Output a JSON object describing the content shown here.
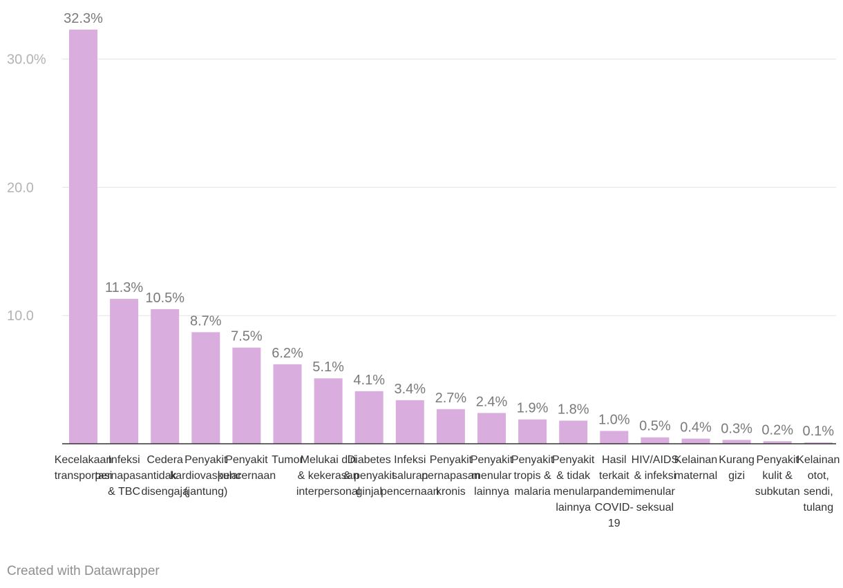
{
  "chart_data": {
    "type": "bar",
    "title": "",
    "xlabel": "",
    "ylabel": "",
    "ylim": [
      0,
      34.5
    ],
    "y_ticks": [
      10,
      20,
      30
    ],
    "y_tick_labels": [
      "10.0",
      "20.0",
      "30.0%"
    ],
    "grid": true,
    "bar_color": "#d9aedf",
    "categories": [
      [
        "Kecelakaan",
        "transportasi"
      ],
      [
        "Infeksi",
        "pernapasan",
        "& TBC"
      ],
      [
        "Cedera",
        "tidak",
        "disengaja"
      ],
      [
        "Penyakit",
        "kardiovaskular",
        "(jantung)"
      ],
      [
        "Penyakit",
        "pencernaan"
      ],
      [
        "Tumor"
      ],
      [
        "Melukai diri",
        "& kekerasan",
        "interpersonal"
      ],
      [
        "Diabetes",
        "& penyakit",
        "ginjal"
      ],
      [
        "Infeksi",
        "saluran",
        "pencernaan"
      ],
      [
        "Penyakit",
        "pernapasan",
        "kronis"
      ],
      [
        "Penyakit",
        "menular",
        "lainnya"
      ],
      [
        "Penyakit",
        "tropis &",
        "malaria"
      ],
      [
        "Penyakit",
        "& tidak",
        "menular",
        "lainnya"
      ],
      [
        "Hasil",
        "terkait",
        "pandemi",
        "COVID-",
        "19"
      ],
      [
        "HIV/AIDS",
        "& infeksi",
        "menular",
        "seksual"
      ],
      [
        "Kelainan",
        "maternal"
      ],
      [
        "Kurang",
        "gizi"
      ],
      [
        "Penyakit",
        "kulit &",
        "subkutan"
      ],
      [
        "Kelainan",
        "otot,",
        "sendi,",
        "tulang"
      ]
    ],
    "values": [
      32.3,
      11.3,
      10.5,
      8.7,
      7.5,
      6.2,
      5.1,
      4.1,
      3.4,
      2.7,
      2.4,
      1.9,
      1.8,
      1.0,
      0.5,
      0.4,
      0.3,
      0.2,
      0.1
    ],
    "value_labels": [
      "32.3%",
      "11.3%",
      "10.5%",
      "8.7%",
      "7.5%",
      "6.2%",
      "5.1%",
      "4.1%",
      "3.4%",
      "2.7%",
      "2.4%",
      "1.9%",
      "1.8%",
      "1.0%",
      "0.5%",
      "0.4%",
      "0.3%",
      "0.2%",
      "0.1%"
    ]
  },
  "footer": {
    "credit": "Created with Datawrapper"
  }
}
